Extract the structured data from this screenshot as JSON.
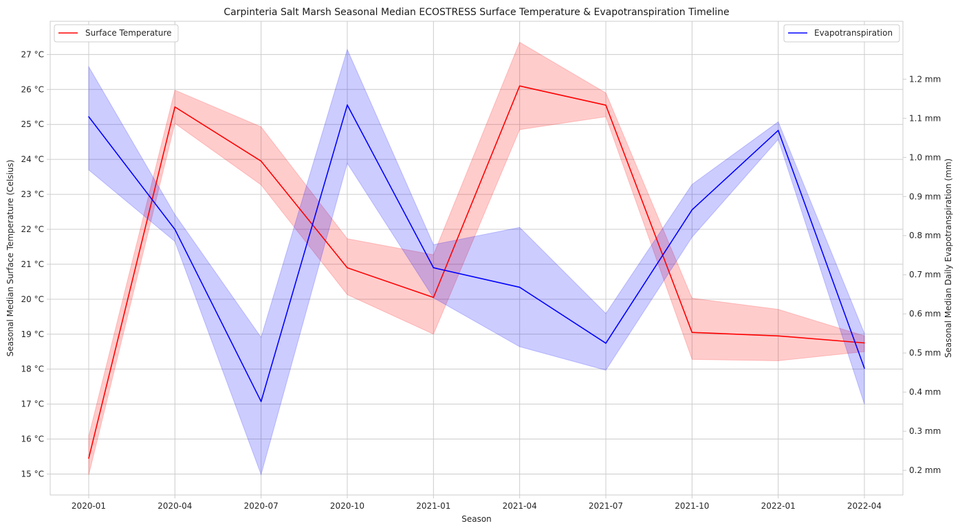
{
  "chart_data": {
    "type": "line",
    "title": "Carpinteria Salt Marsh Seasonal Median ECOSTRESS Surface Temperature & Evapotranspiration Timeline",
    "xlabel": "Season",
    "ylabel_left": "Seasonal Median Surface Temperature (Celsius)",
    "ylabel_right": "Seasonal Median Daily Evapotranspiration (mm)",
    "categories": [
      "2020-01",
      "2020-04",
      "2020-07",
      "2020-10",
      "2021-01",
      "2021-04",
      "2021-07",
      "2021-10",
      "2022-01",
      "2022-04"
    ],
    "y_left": {
      "lim": [
        14.4,
        27.95
      ],
      "ticks": [
        15,
        16,
        17,
        18,
        19,
        20,
        21,
        22,
        23,
        24,
        25,
        26,
        27
      ],
      "tick_labels": [
        "15 °C",
        "16 °C",
        "17 °C",
        "18 °C",
        "19 °C",
        "20 °C",
        "21 °C",
        "22 °C",
        "23 °C",
        "24 °C",
        "25 °C",
        "26 °C",
        "27 °C"
      ]
    },
    "y_right": {
      "lim": [
        0.137,
        1.348
      ],
      "ticks": [
        0.2,
        0.3,
        0.4,
        0.5,
        0.6,
        0.7,
        0.8,
        0.9,
        1.0,
        1.1,
        1.2
      ],
      "tick_labels": [
        "0.2 mm",
        "0.3 mm",
        "0.4 mm",
        "0.5 mm",
        "0.6 mm",
        "0.7 mm",
        "0.8 mm",
        "0.9 mm",
        "1.0 mm",
        "1.1 mm",
        "1.2 mm"
      ]
    },
    "grid": true,
    "series": [
      {
        "name": "Surface Temperature",
        "axis": "left",
        "color": "#ff0000",
        "band_color": "#ff0000",
        "values": [
          15.45,
          25.5,
          23.95,
          20.9,
          20.05,
          26.1,
          25.55,
          19.05,
          18.95,
          18.75
        ],
        "lower": [
          14.97,
          25.03,
          23.27,
          20.13,
          19.0,
          24.85,
          25.22,
          18.28,
          18.24,
          18.5
        ],
        "upper": [
          16.08,
          25.98,
          24.93,
          21.73,
          21.27,
          27.35,
          25.9,
          20.03,
          19.71,
          18.95
        ],
        "legend": "top-left"
      },
      {
        "name": "Evapotranspiration",
        "axis": "right",
        "color": "#0000ff",
        "band_color": "#0000ff",
        "values": [
          1.104,
          0.816,
          0.376,
          1.134,
          0.718,
          0.668,
          0.525,
          0.866,
          1.069,
          0.461
        ],
        "lower": [
          0.968,
          0.785,
          0.189,
          0.985,
          0.641,
          0.516,
          0.456,
          0.796,
          1.046,
          0.369
        ],
        "upper": [
          1.232,
          0.854,
          0.54,
          1.276,
          0.777,
          0.821,
          0.601,
          0.931,
          1.091,
          0.55
        ],
        "legend": "top-right"
      }
    ]
  }
}
